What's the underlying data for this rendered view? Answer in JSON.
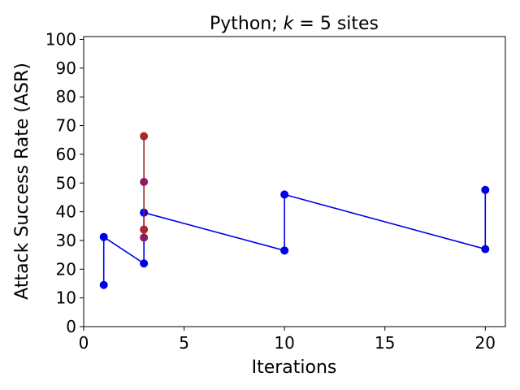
{
  "chart_data": {
    "type": "line",
    "title": "Python; k = 5 sites",
    "title_parts": {
      "prefix": "Python; ",
      "var": "k",
      "suffix": " = 5 sites"
    },
    "xlabel": "Iterations",
    "ylabel": "Attack Success Rate (ASR)",
    "xlim": [
      0,
      21
    ],
    "ylim": [
      0,
      101
    ],
    "xticks": [
      0,
      5,
      10,
      15,
      20
    ],
    "yticks": [
      0,
      10,
      20,
      30,
      40,
      50,
      60,
      70,
      80,
      90,
      100
    ],
    "grid": false,
    "series": [
      {
        "name": "blue",
        "color": "#0000e6",
        "points": [
          [
            1,
            14.5
          ],
          [
            1,
            31.2
          ],
          [
            3,
            22.0
          ],
          [
            3,
            39.7
          ],
          [
            10,
            26.5
          ],
          [
            10,
            46.0
          ],
          [
            20,
            27.0
          ],
          [
            20,
            47.6
          ]
        ]
      },
      {
        "name": "red",
        "color": "#a52a2a",
        "points": [
          [
            3,
            33.8
          ],
          [
            3,
            66.3
          ]
        ]
      }
    ],
    "extra_points": [
      {
        "x": 3,
        "y": 50.4,
        "color": "#8b1c62"
      },
      {
        "x": 3,
        "y": 31.0,
        "color": "#8b1c62"
      }
    ]
  }
}
